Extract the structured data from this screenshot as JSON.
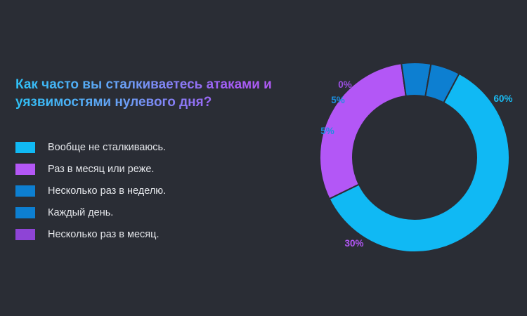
{
  "chart_data": {
    "type": "pie",
    "title": "Как часто вы сталкиваетесь атаками и уязвимостями нулевого дня?",
    "categories": [
      "Вообще не сталкиваюсь.",
      "Раз в месяц или реже.",
      "Несколько раз в неделю.",
      "Каждый день.",
      "Несколько раз в месяц."
    ],
    "values": [
      60,
      30,
      5,
      5,
      0
    ],
    "value_labels": [
      "60%",
      "30%",
      "5%",
      "5%",
      "0%"
    ],
    "colors": [
      "#10b9f4",
      "#b357f6",
      "#0d7fd1",
      "#0d7fd1",
      "#8e44d6"
    ],
    "legend_position": "left"
  }
}
